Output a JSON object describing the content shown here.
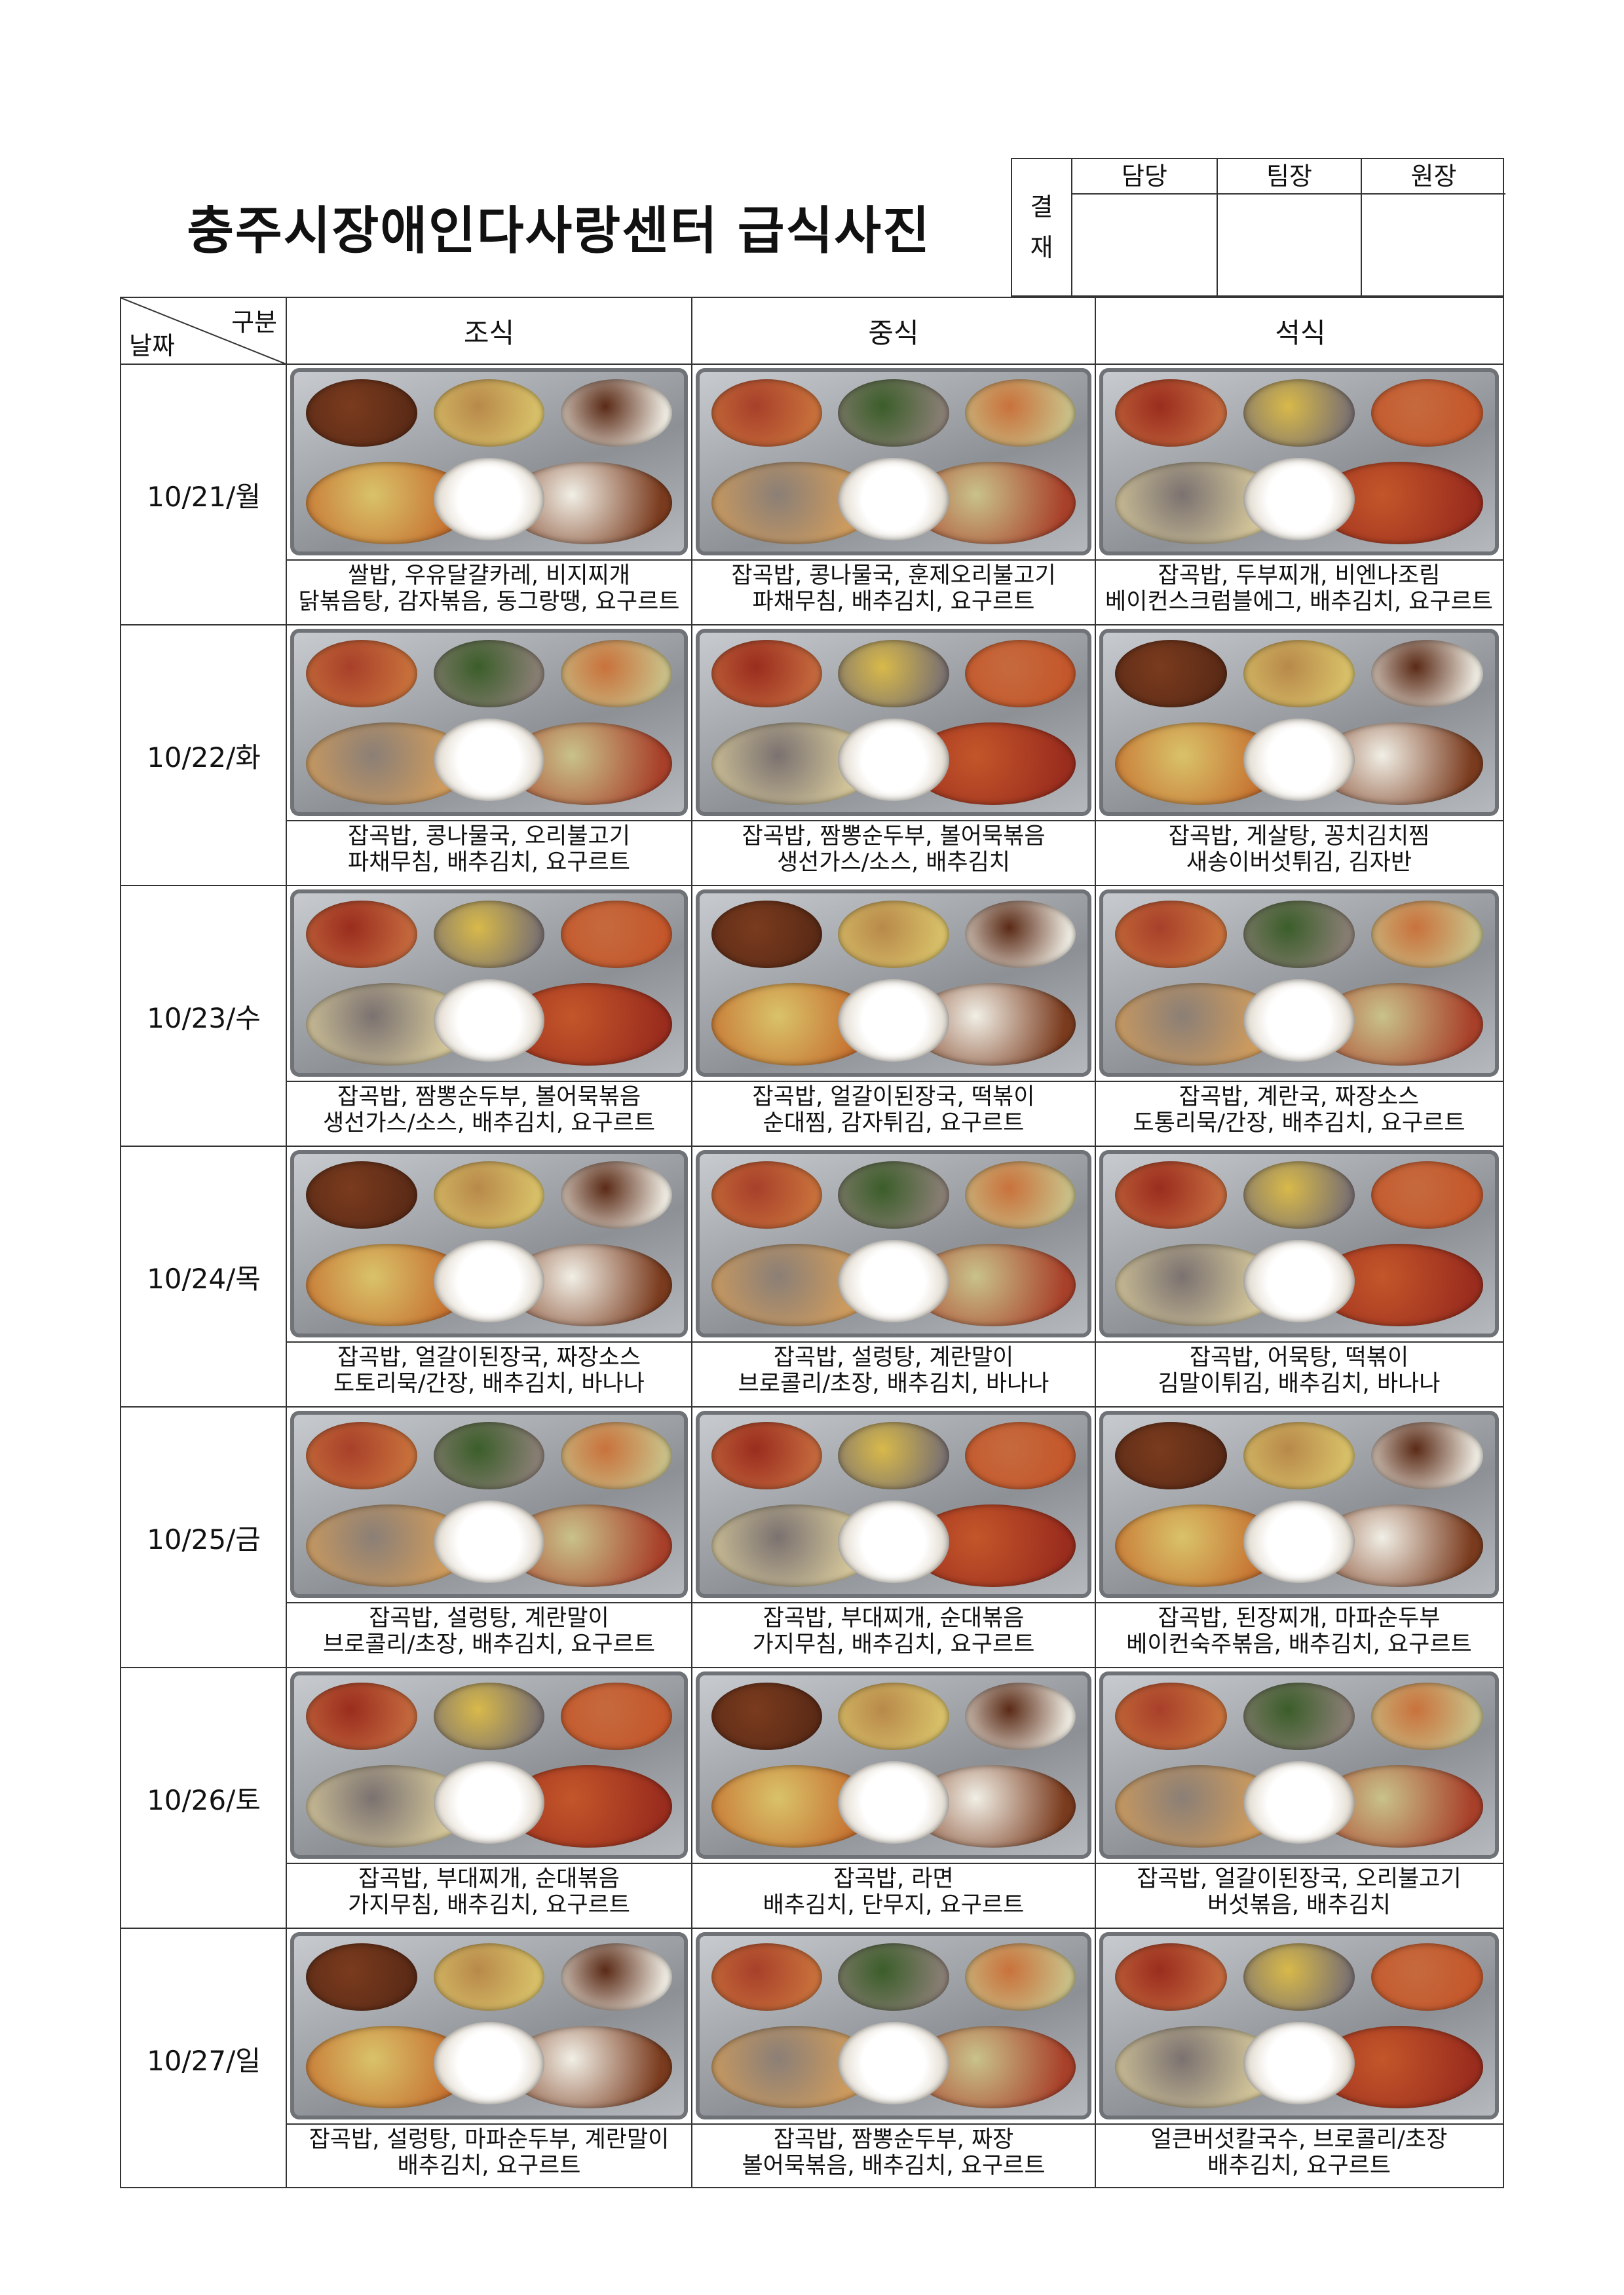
{
  "title": "충주시장애인다사랑센터 급식사진",
  "approval": {
    "label_1": "결",
    "label_2": "재",
    "columns": [
      "담당",
      "팀장",
      "원장"
    ]
  },
  "table": {
    "corner_top": "구분",
    "corner_bottom": "날짜",
    "headers": [
      "조식",
      "중식",
      "석식"
    ],
    "rows": [
      {
        "date": "10/21/월",
        "meals": [
          {
            "line1": "쌀밥, 우유달걀카레, 비지찌개",
            "line2": "닭볶음탕, 감자볶음, 동그랑땡, 요구르트"
          },
          {
            "line1": "잡곡밥, 콩나물국, 훈제오리불고기",
            "line2": "파채무침, 배추김치, 요구르트"
          },
          {
            "line1": "잡곡밥, 두부찌개, 비엔나조림",
            "line2": "베이컨스크럼블에그, 배추김치, 요구르트"
          }
        ]
      },
      {
        "date": "10/22/화",
        "meals": [
          {
            "line1": "잡곡밥, 콩나물국, 오리불고기",
            "line2": "파채무침, 배추김치, 요구르트"
          },
          {
            "line1": "잡곡밥, 짬뽕순두부, 볼어묵볶음",
            "line2": "생선가스/소스, 배추김치"
          },
          {
            "line1": "잡곡밥, 게살탕, 꽁치김치찜",
            "line2": "새송이버섯튀김, 김자반"
          }
        ]
      },
      {
        "date": "10/23/수",
        "meals": [
          {
            "line1": "잡곡밥, 짬뽕순두부, 볼어묵볶음",
            "line2": "생선가스/소스, 배추김치, 요구르트"
          },
          {
            "line1": "잡곡밥, 얼갈이된장국, 떡볶이",
            "line2": "순대찜, 감자튀김, 요구르트"
          },
          {
            "line1": "잡곡밥, 계란국, 짜장소스",
            "line2": "도통리묵/간장, 배추김치, 요구르트"
          }
        ]
      },
      {
        "date": "10/24/목",
        "meals": [
          {
            "line1": "잡곡밥, 얼갈이된장국, 짜장소스",
            "line2": "도토리묵/간장, 배추김치, 바나나"
          },
          {
            "line1": "잡곡밥, 설렁탕, 계란말이",
            "line2": "브로콜리/초장, 배추김치, 바나나"
          },
          {
            "line1": "잡곡밥, 어묵탕, 떡볶이",
            "line2": "김말이튀김, 배추김치, 바나나"
          }
        ]
      },
      {
        "date": "10/25/금",
        "meals": [
          {
            "line1": "잡곡밥, 설렁탕, 계란말이",
            "line2": "브로콜리/초장, 배추김치, 요구르트"
          },
          {
            "line1": "잡곡밥, 부대찌개, 순대볶음",
            "line2": "가지무침, 배추김치, 요구르트"
          },
          {
            "line1": "잡곡밥, 된장찌개, 마파순두부",
            "line2": "베이컨숙주볶음, 배추김치, 요구르트"
          }
        ]
      },
      {
        "date": "10/26/토",
        "meals": [
          {
            "line1": "잡곡밥, 부대찌개, 순대볶음",
            "line2": "가지무침, 배추김치, 요구르트"
          },
          {
            "line1": "잡곡밥, 라면",
            "line2": "배추김치, 단무지, 요구르트"
          },
          {
            "line1": "잡곡밥, 얼갈이된장국, 오리불고기",
            "line2": "버섯볶음, 배추김치"
          }
        ]
      },
      {
        "date": "10/27/일",
        "meals": [
          {
            "line1": "잡곡밥, 설렁탕, 마파순두부, 계란말이",
            "line2": "배추김치, 요구르트"
          },
          {
            "line1": "잡곡밥, 짬뽕순두부, 짜장",
            "line2": "볼어묵볶음, 배추김치, 요구르트"
          },
          {
            "line1": "얼큰버섯칼국수, 브로콜리/초장",
            "line2": "배추김치, 요구르트"
          }
        ]
      }
    ]
  }
}
